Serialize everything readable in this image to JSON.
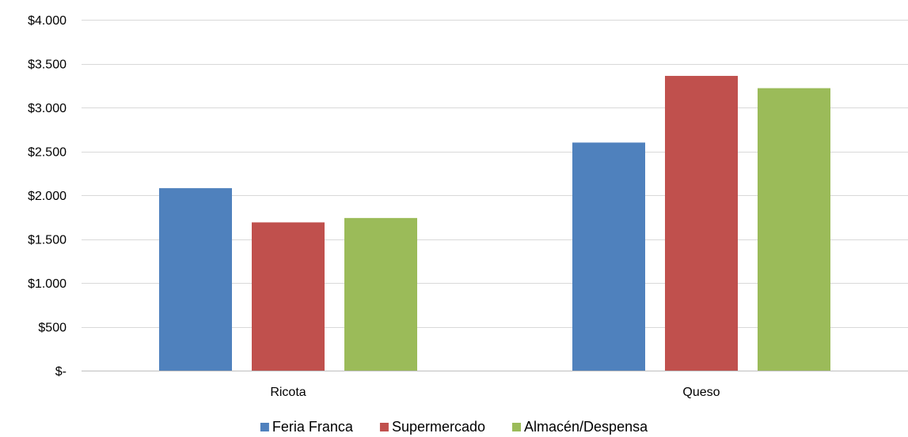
{
  "chart_data": {
    "type": "bar",
    "title": "",
    "xlabel": "",
    "ylabel": "",
    "categories": [
      "Ricota",
      "Queso"
    ],
    "series": [
      {
        "name": "Feria Franca",
        "color": "#4f81bd",
        "values": [
          2080,
          2600
        ]
      },
      {
        "name": "Supermercado",
        "color": "#c0504d",
        "values": [
          1690,
          3360
        ]
      },
      {
        "name": "Almacén/Despensa",
        "color": "#9bbb59",
        "values": [
          1740,
          3220
        ]
      }
    ],
    "ylim": [
      0,
      4000
    ],
    "yticks": [
      0,
      500,
      1000,
      1500,
      2000,
      2500,
      3000,
      3500,
      4000
    ],
    "ytick_labels": [
      "$-",
      "$500",
      "$1.000",
      "$1.500",
      "$2.000",
      "$2.500",
      "$3.000",
      "$3.500",
      "$4.000"
    ],
    "grid": true,
    "legend": "bottom"
  }
}
